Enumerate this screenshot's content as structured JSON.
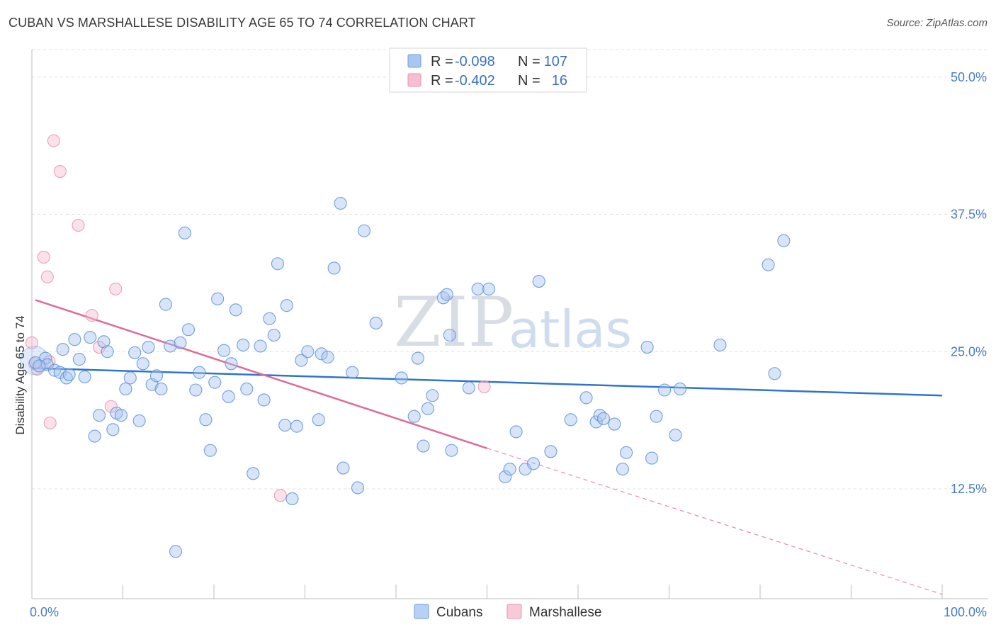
{
  "title": "CUBAN VS MARSHALLESE DISABILITY AGE 65 TO 74 CORRELATION CHART",
  "source": "Source: ZipAtlas.com",
  "watermark": {
    "zip": "ZIP",
    "atlas": "atlas"
  },
  "legend": {
    "rows": [
      {
        "r_label": "R =",
        "r_value": "-0.098",
        "n_label": "N =",
        "n_value": "107",
        "color": "#a9c6f0",
        "stroke": "#6f9ee0"
      },
      {
        "r_label": "R =",
        "r_value": "-0.402",
        "n_label": "N =",
        "n_value": "16",
        "color": "#f6bfd0",
        "stroke": "#e892ae"
      }
    ]
  },
  "bottom_legend": [
    {
      "label": "Cubans",
      "color": "#b8d0f3",
      "stroke": "#6f9ee0"
    },
    {
      "label": "Marshallese",
      "color": "#f8cad8",
      "stroke": "#e892ae"
    }
  ],
  "chart_data": {
    "type": "scatter",
    "title": "CUBAN VS MARSHALLESE DISABILITY AGE 65 TO 74 CORRELATION CHART",
    "xlabel": "",
    "ylabel": "Disability Age 65 to 74",
    "xlim": [
      0,
      100
    ],
    "ylim": [
      2.5,
      52.5
    ],
    "x_tick_labels": [
      {
        "value": 0,
        "label": "0.0%"
      },
      {
        "value": 100,
        "label": "100.0%"
      }
    ],
    "y_ticks": [
      {
        "value": 12.5,
        "label": "12.5%"
      },
      {
        "value": 25.0,
        "label": "25.0%"
      },
      {
        "value": 37.5,
        "label": "37.5%"
      },
      {
        "value": 50.0,
        "label": "50.0%"
      }
    ],
    "x_minor_ticks": [
      10,
      20,
      30,
      40,
      50,
      60,
      70,
      80,
      90,
      100
    ],
    "grid": true,
    "series": [
      {
        "name": "Cubans",
        "color": "#a9c6f0",
        "stroke": "#5b8fd8",
        "trend": {
          "x0": 0,
          "y0": 23.5,
          "x1": 100,
          "y1": 21.0,
          "color": "#2f74d0"
        },
        "points": [
          [
            0.4,
            24.0
          ],
          [
            1.5,
            24.4
          ],
          [
            1.7,
            23.8
          ],
          [
            2.5,
            23.3
          ],
          [
            3.1,
            23.1
          ],
          [
            3.4,
            25.2
          ],
          [
            3.8,
            22.6
          ],
          [
            4.1,
            22.9
          ],
          [
            4.7,
            26.1
          ],
          [
            5.2,
            24.3
          ],
          [
            5.8,
            22.7
          ],
          [
            6.4,
            26.3
          ],
          [
            6.9,
            17.3
          ],
          [
            7.4,
            19.2
          ],
          [
            7.9,
            25.9
          ],
          [
            8.3,
            25.0
          ],
          [
            8.9,
            17.9
          ],
          [
            9.3,
            19.4
          ],
          [
            9.8,
            19.2
          ],
          [
            10.3,
            21.6
          ],
          [
            10.8,
            22.6
          ],
          [
            11.3,
            24.9
          ],
          [
            11.8,
            18.7
          ],
          [
            12.2,
            23.9
          ],
          [
            12.8,
            25.4
          ],
          [
            13.2,
            22.0
          ],
          [
            13.7,
            22.8
          ],
          [
            14.2,
            21.6
          ],
          [
            14.7,
            29.3
          ],
          [
            15.2,
            25.5
          ],
          [
            15.8,
            6.8
          ],
          [
            16.3,
            25.8
          ],
          [
            16.8,
            35.8
          ],
          [
            17.2,
            27.0
          ],
          [
            18.0,
            21.5
          ],
          [
            18.4,
            23.1
          ],
          [
            19.1,
            18.8
          ],
          [
            19.6,
            16.0
          ],
          [
            20.1,
            22.2
          ],
          [
            20.4,
            29.8
          ],
          [
            21.1,
            25.1
          ],
          [
            21.6,
            20.9
          ],
          [
            21.9,
            23.9
          ],
          [
            22.4,
            28.8
          ],
          [
            23.2,
            25.6
          ],
          [
            23.6,
            21.6
          ],
          [
            24.3,
            13.9
          ],
          [
            25.1,
            25.5
          ],
          [
            25.5,
            20.6
          ],
          [
            26.1,
            28.0
          ],
          [
            26.6,
            26.5
          ],
          [
            27.0,
            33.0
          ],
          [
            27.8,
            18.3
          ],
          [
            28.0,
            29.2
          ],
          [
            28.6,
            11.6
          ],
          [
            29.1,
            18.2
          ],
          [
            29.6,
            24.2
          ],
          [
            30.3,
            25.0
          ],
          [
            31.5,
            18.8
          ],
          [
            31.8,
            24.8
          ],
          [
            32.5,
            24.5
          ],
          [
            33.2,
            32.6
          ],
          [
            33.9,
            38.5
          ],
          [
            34.2,
            14.4
          ],
          [
            35.2,
            23.1
          ],
          [
            35.8,
            12.6
          ],
          [
            36.5,
            36.0
          ],
          [
            37.8,
            27.6
          ],
          [
            40.6,
            22.6
          ],
          [
            42.0,
            19.1
          ],
          [
            42.4,
            24.4
          ],
          [
            43.0,
            16.4
          ],
          [
            43.5,
            19.8
          ],
          [
            44.0,
            21.0
          ],
          [
            45.2,
            29.9
          ],
          [
            45.6,
            30.2
          ],
          [
            45.9,
            26.5
          ],
          [
            46.1,
            16.0
          ],
          [
            48.0,
            21.7
          ],
          [
            49.0,
            30.7
          ],
          [
            50.2,
            30.7
          ],
          [
            52.0,
            13.6
          ],
          [
            52.5,
            14.3
          ],
          [
            53.2,
            17.7
          ],
          [
            54.2,
            14.3
          ],
          [
            55.1,
            14.8
          ],
          [
            55.7,
            31.4
          ],
          [
            57.0,
            15.9
          ],
          [
            59.2,
            18.8
          ],
          [
            60.9,
            20.8
          ],
          [
            62.0,
            18.6
          ],
          [
            62.4,
            19.2
          ],
          [
            62.8,
            18.9
          ],
          [
            64.0,
            18.4
          ],
          [
            64.9,
            14.3
          ],
          [
            65.3,
            15.8
          ],
          [
            67.6,
            25.4
          ],
          [
            68.1,
            15.3
          ],
          [
            68.6,
            19.1
          ],
          [
            69.5,
            21.5
          ],
          [
            70.7,
            17.4
          ],
          [
            71.2,
            21.6
          ],
          [
            75.6,
            25.6
          ],
          [
            80.9,
            32.9
          ],
          [
            81.6,
            23.0
          ],
          [
            82.6,
            35.1
          ],
          [
            0.8,
            23.7
          ]
        ]
      },
      {
        "name": "Marshallese",
        "color": "#f6bfd0",
        "stroke": "#e892ae",
        "trend": {
          "x0": 0.4,
          "y0": 29.7,
          "x1": 50.0,
          "y1": 16.2,
          "dash_to": {
            "x": 100,
            "y": 2.9
          },
          "color": "#e06a98"
        },
        "points": [
          [
            0.0,
            25.8
          ],
          [
            0.6,
            23.4
          ],
          [
            1.3,
            33.6
          ],
          [
            1.7,
            31.8
          ],
          [
            1.9,
            24.1
          ],
          [
            2.0,
            18.5
          ],
          [
            2.4,
            44.2
          ],
          [
            3.1,
            41.4
          ],
          [
            5.1,
            36.5
          ],
          [
            6.6,
            28.3
          ],
          [
            7.4,
            25.4
          ],
          [
            8.7,
            20.0
          ],
          [
            9.2,
            30.7
          ],
          [
            27.3,
            11.9
          ],
          [
            49.7,
            21.8
          ],
          [
            0.3,
            23.9
          ]
        ]
      }
    ]
  }
}
